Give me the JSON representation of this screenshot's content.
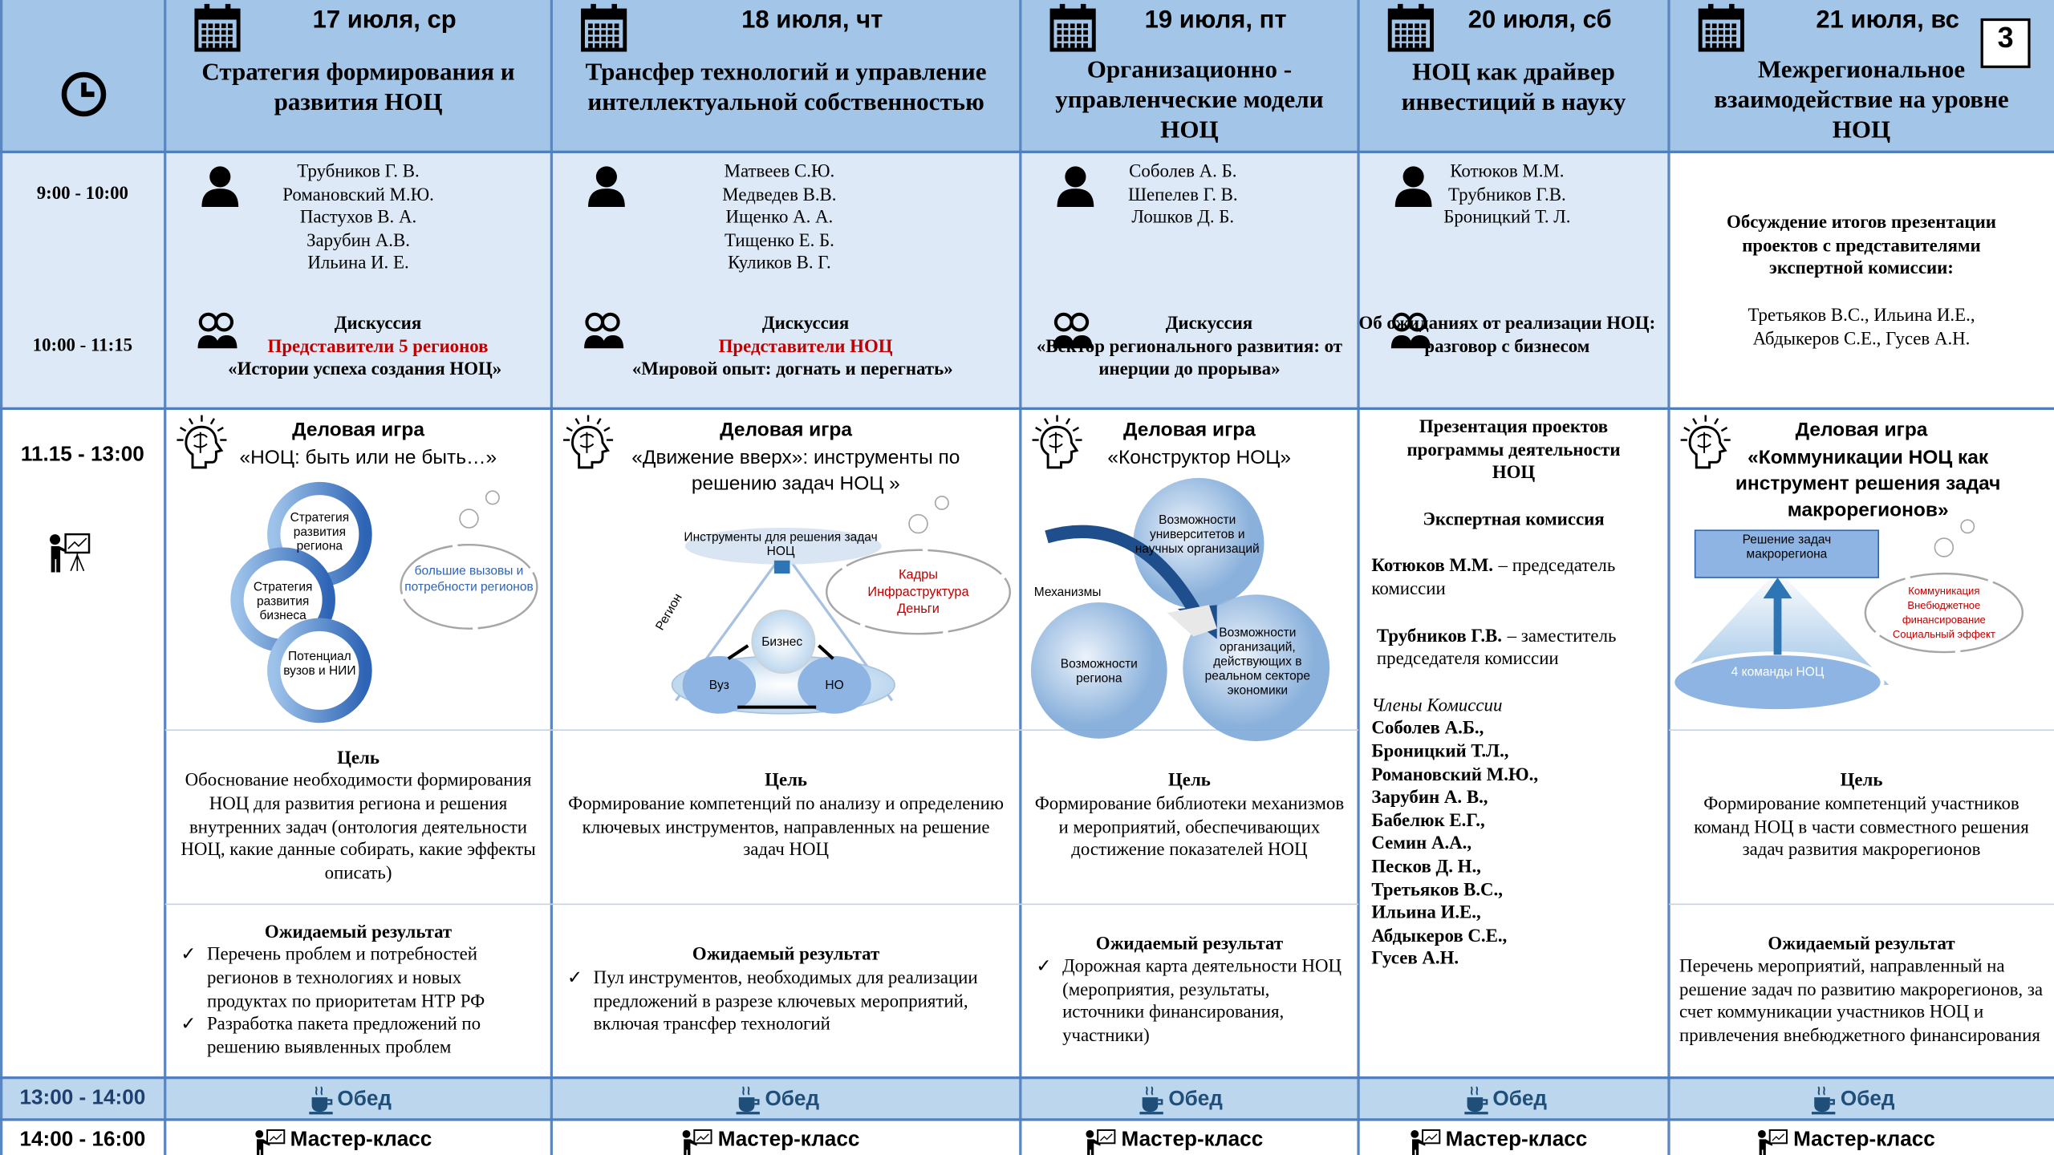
{
  "page_number": "3",
  "times": [
    "9:00 - 10:00",
    "10:00 - 11:15",
    "11.15 - 13:00",
    "13:00 - 14:00",
    "14:00 - 16:00"
  ],
  "days": [
    {
      "date": "17 июля, ср",
      "title": "Стратегия формирования и развития НОЦ",
      "speakers": [
        "Трубников Г. В.",
        "Романовский М.Ю.",
        "Пастухов В. А.",
        "Зарубин А.В.",
        "Ильина И. Е."
      ],
      "discussion": "Дискуссия",
      "discussion_guests": "Представители 5 регионов",
      "discussion_topic": "«Истории успеха создания НОЦ»",
      "game_label": "Деловая игра",
      "game_title": "«НОЦ: быть или не быть…»",
      "diagram": [
        "Стратегия развития региона",
        "Стратегия развития бизнеса",
        "Потенциал вузов и НИИ"
      ],
      "cloud": "большие вызовы и потребности регионов",
      "goal_label": "Цель",
      "goal": "Обоснование необходимости формирования НОЦ для развития региона и решения внутренних задач (онтология деятельности НОЦ, какие данные собирать, какие эффекты описать)",
      "result_label": "Ожидаемый результат",
      "results": [
        "Перечень проблем и потребностей регионов в технологиях и новых продуктах по приоритетам НТР РФ",
        "Разработка пакета предложений по решению выявленных проблем"
      ],
      "lunch": "Обед",
      "master": "Мастер-класс"
    },
    {
      "date": "18 июля, чт",
      "title": "Трансфер технологий и управление интеллектуальной собственностью",
      "speakers": [
        "Матвеев С.Ю.",
        "Медведев В.В.",
        "Ищенко А. А.",
        "Тищенко Е. Б.",
        "Куликов В. Г."
      ],
      "discussion": "Дискуссия",
      "discussion_guests": "Представители НОЦ",
      "discussion_topic": "«Мировой опыт: догнать и перегнать»",
      "game_label": "Деловая игра",
      "game_title": "«Движение вверх»: инструменты по решению задач НОЦ »",
      "diagram": [
        "Инструменты для решения задач НОЦ",
        "Регион",
        "Бизнес",
        "Вуз",
        "НО"
      ],
      "cloud": "Кадры Инфраструктура Деньги",
      "goal_label": "Цель",
      "goal": "Формирование компетенций по анализу и определению ключевых инструментов, направленных на решение задач  НОЦ",
      "result_label": "Ожидаемый результат",
      "results": [
        "Пул инструментов, необходимых для реализации предложений в разрезе ключевых мероприятий, включая трансфер технологий"
      ],
      "lunch": "Обед",
      "master": "Мастер-класс"
    },
    {
      "date": "19 июля, пт",
      "title": "Организационно - управленческие модели НОЦ",
      "speakers": [
        "Соболев А. Б.",
        "Шепелев Г. В.",
        "Лошков Д. Б."
      ],
      "discussion": "Дискуссия",
      "discussion_topic": "«Вектор регионального развития: от инерции до прорыва»",
      "game_label": "Деловая игра",
      "game_title": "«Конструктор НОЦ»",
      "diagram": [
        "Возможности университетов и научных организаций",
        "Механизмы",
        "Возможности региона",
        "Возможности организаций, действующих в реальном секторе экономики"
      ],
      "goal_label": "Цель",
      "goal": "Формирование библиотеки механизмов и мероприятий, обеспечивающих достижение показателей НОЦ",
      "result_label": "Ожидаемый результат",
      "results": [
        "Дорожная карта деятельности НОЦ (мероприятия, результаты, источники финансирования, участники)"
      ],
      "lunch": "Обед",
      "master": "Мастер-класс"
    },
    {
      "date": "20 июля, сб",
      "title": "НОЦ как драйвер инвестиций в науку",
      "speakers": [
        "Котюков М.М.",
        "Трубников Г.В.",
        "Броницкий Т. Л."
      ],
      "discussion_topic": "Об ожиданиях от реализации НОЦ: разговор с бизнесом",
      "presentation": "Презентация проектов программы деятельности НОЦ",
      "commission": "Экспертная комиссия",
      "chair_name": "Котюков М.М.",
      "chair_role": "– председатель комиссии",
      "deputy_name": "Трубников Г.В.",
      "deputy_role": "– заместитель председателя комиссии",
      "members_label": "Члены Комиссии",
      "members": [
        "Соболев А.Б.,",
        "Броницкий Т.Л.,",
        "Романовский М.Ю.,",
        "Зарубин А. В.,",
        "Бабелюк Е.Г.,",
        "Семин А.А.,",
        "Песков Д. Н.,",
        "Третьяков В.С.,",
        "Ильина И.Е.,",
        "Абдыкеров С.Е.,",
        "Гусев А.Н."
      ],
      "lunch": "Обед",
      "master": "Мастер-класс"
    },
    {
      "date": "21 июля, вс",
      "title": "Межрегиональное взаимодействие на уровне НОЦ",
      "morning_text": "Обсуждение итогов презентации проектов с представителями экспертной комиссии:",
      "morning_names": "Третьяков В.С., Ильина И.Е., Абдыкеров С.Е., Гусев А.Н.",
      "game_label": "Деловая игра",
      "game_title": "«Коммуникации НОЦ как инструмент решения задач макрорегионов»",
      "diagram": [
        "Решение задач макрорегиона",
        "4 команды НОЦ"
      ],
      "cloud": "Коммуникация Внебюджетное финансирование Социальный эффект",
      "goal_label": "Цель",
      "goal": "Формирование компетенций участников команд НОЦ в части совместного решения задач развития макрорегионов",
      "result_label": "Ожидаемый результат",
      "result_text": "Перечень мероприятий, направленный на решение задач по развитию макрорегионов, за счет коммуникации участников НОЦ и привлечения внебюджетного финансирования",
      "lunch": "Обед",
      "master": "Мастер-класс"
    }
  ]
}
